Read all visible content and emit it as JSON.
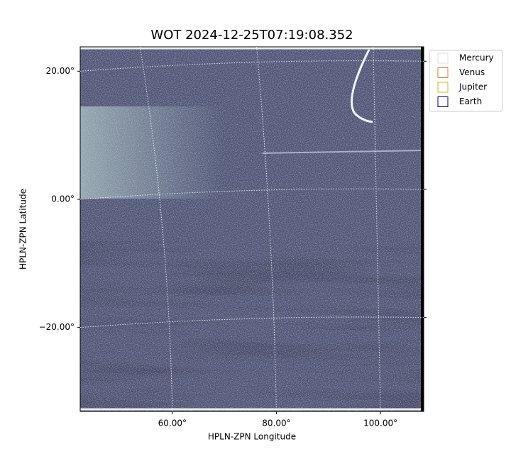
{
  "chart_data": {
    "type": "image",
    "title": "WOT 2024-12-25T07:19:08.352",
    "x_label": "HPLN-ZPN Longitude",
    "y_label": "HPLN-ZPN Latitude",
    "xlim": [
      42.3,
      108.3
    ],
    "ylim": [
      -33.1,
      23.8
    ],
    "xticks": [
      {
        "value": 60,
        "label": "60.00°"
      },
      {
        "value": 80,
        "label": "80.00°"
      },
      {
        "value": 100,
        "label": "100.00°"
      }
    ],
    "yticks": [
      {
        "value": -20,
        "label": "−20.00°"
      },
      {
        "value": 0,
        "label": "0.00°"
      },
      {
        "value": 20,
        "label": "20.00°"
      }
    ],
    "grid": true,
    "legend": [
      {
        "name": "Mercury",
        "color": "#dddddd"
      },
      {
        "name": "Venus",
        "color": "#e07b39"
      },
      {
        "name": "Jupiter",
        "color": "#e0b020"
      },
      {
        "name": "Earth",
        "color": "#000080"
      }
    ]
  }
}
